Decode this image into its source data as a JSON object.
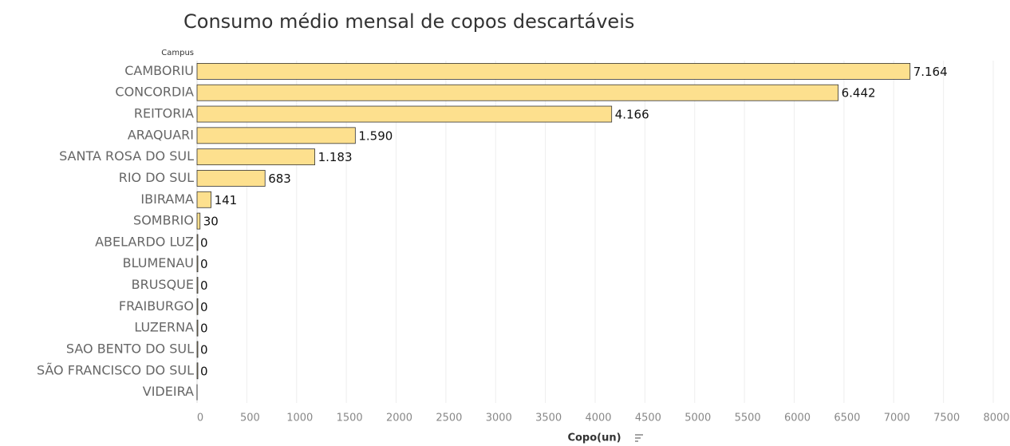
{
  "chart_data": {
    "type": "bar",
    "orientation": "horizontal",
    "title": "Consumo médio mensal de copos descartáveis",
    "category_axis_label": "Campus",
    "x_axis_label": "Copo(un)",
    "categories": [
      "CAMBORIU",
      "CONCORDIA",
      "REITORIA",
      "ARAQUARI",
      "SANTA ROSA DO SUL",
      "RIO DO SUL",
      "IBIRAMA",
      "SOMBRIO",
      "ABELARDO LUZ",
      "BLUMENAU",
      "BRUSQUE",
      "FRAIBURGO",
      "LUZERNA",
      "SAO BENTO DO SUL",
      "SÃO FRANCISCO DO SUL",
      "VIDEIRA"
    ],
    "values": [
      7164,
      6442,
      4166,
      1590,
      1183,
      683,
      141,
      30,
      0,
      0,
      0,
      0,
      0,
      0,
      0,
      null
    ],
    "value_labels": [
      "7.164",
      "6.442",
      "4.166",
      "1.590",
      "1.183",
      "683",
      "141",
      "30",
      "0",
      "0",
      "0",
      "0",
      "0",
      "0",
      "0",
      null
    ],
    "color": "#fde08e",
    "xlim": [
      0,
      8000
    ],
    "xticks": [
      0,
      500,
      1000,
      1500,
      2000,
      2500,
      3000,
      3500,
      4000,
      4500,
      5000,
      5500,
      6000,
      6500,
      7000,
      7500,
      8000
    ],
    "grid": true
  }
}
